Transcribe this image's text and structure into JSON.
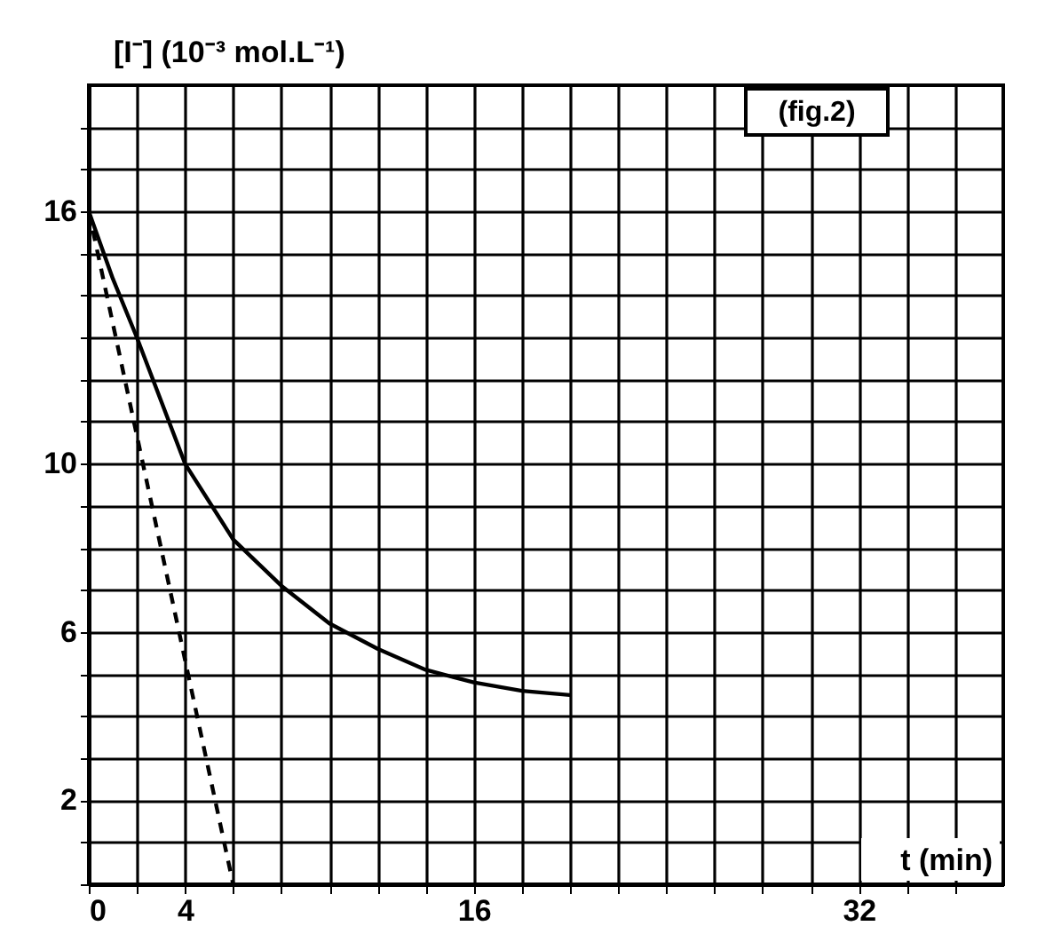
{
  "chart_data": {
    "type": "line",
    "xlabel": "t (min)",
    "ylabel": "[I⁻] (10⁻³ mol.L⁻¹)",
    "annotations": [
      "(fig.2)"
    ],
    "series": [
      {
        "color": "#000000",
        "line_style": "solid",
        "x": [
          0,
          1,
          2,
          3,
          4,
          6,
          8,
          10,
          12,
          14,
          16,
          18,
          20
        ],
        "values": [
          16,
          14.4,
          13,
          11.5,
          10,
          8.2,
          7.1,
          6.2,
          5.6,
          5.1,
          4.8,
          4.6,
          4.5
        ]
      },
      {
        "color": "#000000",
        "line_style": "dashed",
        "x": [
          0,
          6
        ],
        "values": [
          16,
          0
        ]
      }
    ],
    "xlim": [
      0,
      38
    ],
    "ylim": [
      0,
      19
    ],
    "xticks": [
      0,
      {
        "value": 2,
        "label": null
      },
      4,
      {
        "value": 6,
        "label": null
      },
      {
        "value": 8,
        "label": null
      },
      {
        "value": 10,
        "label": null
      },
      {
        "value": 12,
        "label": null
      },
      {
        "value": 14,
        "label": null
      },
      16,
      {
        "value": 18,
        "label": null
      },
      {
        "value": 20,
        "label": null
      },
      {
        "value": 22,
        "label": null
      },
      {
        "value": 24,
        "label": null
      },
      {
        "value": 26,
        "label": null
      },
      {
        "value": 28,
        "label": null
      },
      {
        "value": 30,
        "label": null
      },
      32,
      {
        "value": 34,
        "label": null
      },
      {
        "value": 36,
        "label": null
      }
    ],
    "yticks": [
      {
        "value": 0,
        "label": null
      },
      {
        "value": 1,
        "label": null
      },
      2,
      {
        "value": 3,
        "label": null
      },
      {
        "value": 4,
        "label": null
      },
      {
        "value": 5,
        "label": null
      },
      6,
      {
        "value": 7,
        "label": null
      },
      {
        "value": 8,
        "label": null
      },
      {
        "value": 9,
        "label": null
      },
      10,
      {
        "value": 11,
        "label": null
      },
      {
        "value": 12,
        "label": null
      },
      {
        "value": 13,
        "label": null
      },
      {
        "value": 14,
        "label": null
      },
      {
        "value": 15,
        "label": null
      },
      16,
      {
        "value": 17,
        "label": null
      },
      {
        "value": 18,
        "label": null
      }
    ],
    "grid": true
  }
}
